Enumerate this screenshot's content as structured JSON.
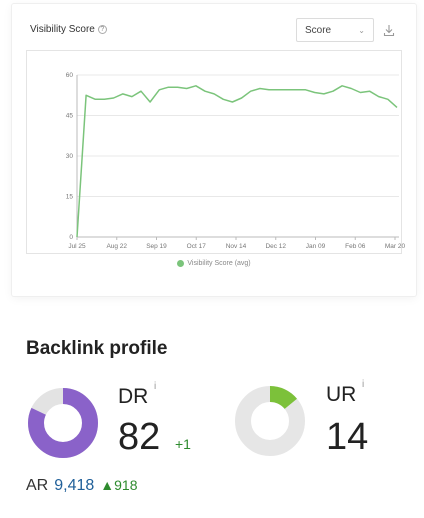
{
  "visibility": {
    "title": "Visibility Score",
    "help_icon": "question-circle-icon",
    "select_value": "Score",
    "download_icon": "download-icon",
    "legend_label": "Visibility Score (avg)"
  },
  "chart_data": {
    "type": "line",
    "title": "",
    "xlabel": "",
    "ylabel": "",
    "x_tick_labels": [
      "Jul 25",
      "Aug 22",
      "Sep 19",
      "Oct 17",
      "Nov 14",
      "Dec 12",
      "Jan 09",
      "Feb 06",
      "Mar 20"
    ],
    "y_ticks": [
      0,
      15,
      30,
      45,
      60
    ],
    "ylim": [
      0,
      60
    ],
    "grid": true,
    "legend_position": "bottom",
    "series": [
      {
        "name": "Visibility Score (avg)",
        "color": "#7bc47b",
        "values": [
          0,
          52.5,
          51,
          51,
          51.5,
          53,
          52,
          54,
          50,
          54.5,
          55.5,
          55.5,
          55,
          56,
          54,
          53,
          51,
          50,
          51.5,
          54,
          55,
          54.5,
          54.5,
          54.5,
          54.5,
          54.5,
          53.5,
          53,
          54,
          56,
          55,
          53.5,
          54,
          52,
          51,
          48
        ]
      }
    ]
  },
  "backlinks": {
    "title": "Backlink profile",
    "dr": {
      "label": "DR",
      "info": "i",
      "value": "82",
      "delta": "+1",
      "fraction": 0.82,
      "color": "#8a62c9",
      "track": "#e3e3e3"
    },
    "ur": {
      "label": "UR",
      "info": "i",
      "value": "14",
      "fraction": 0.14,
      "color": "#7cc13a",
      "track": "#e6e6e6"
    },
    "ar": {
      "label": "AR",
      "value": "9,418",
      "delta_icon": "triangle-up-icon",
      "delta": "918"
    }
  }
}
